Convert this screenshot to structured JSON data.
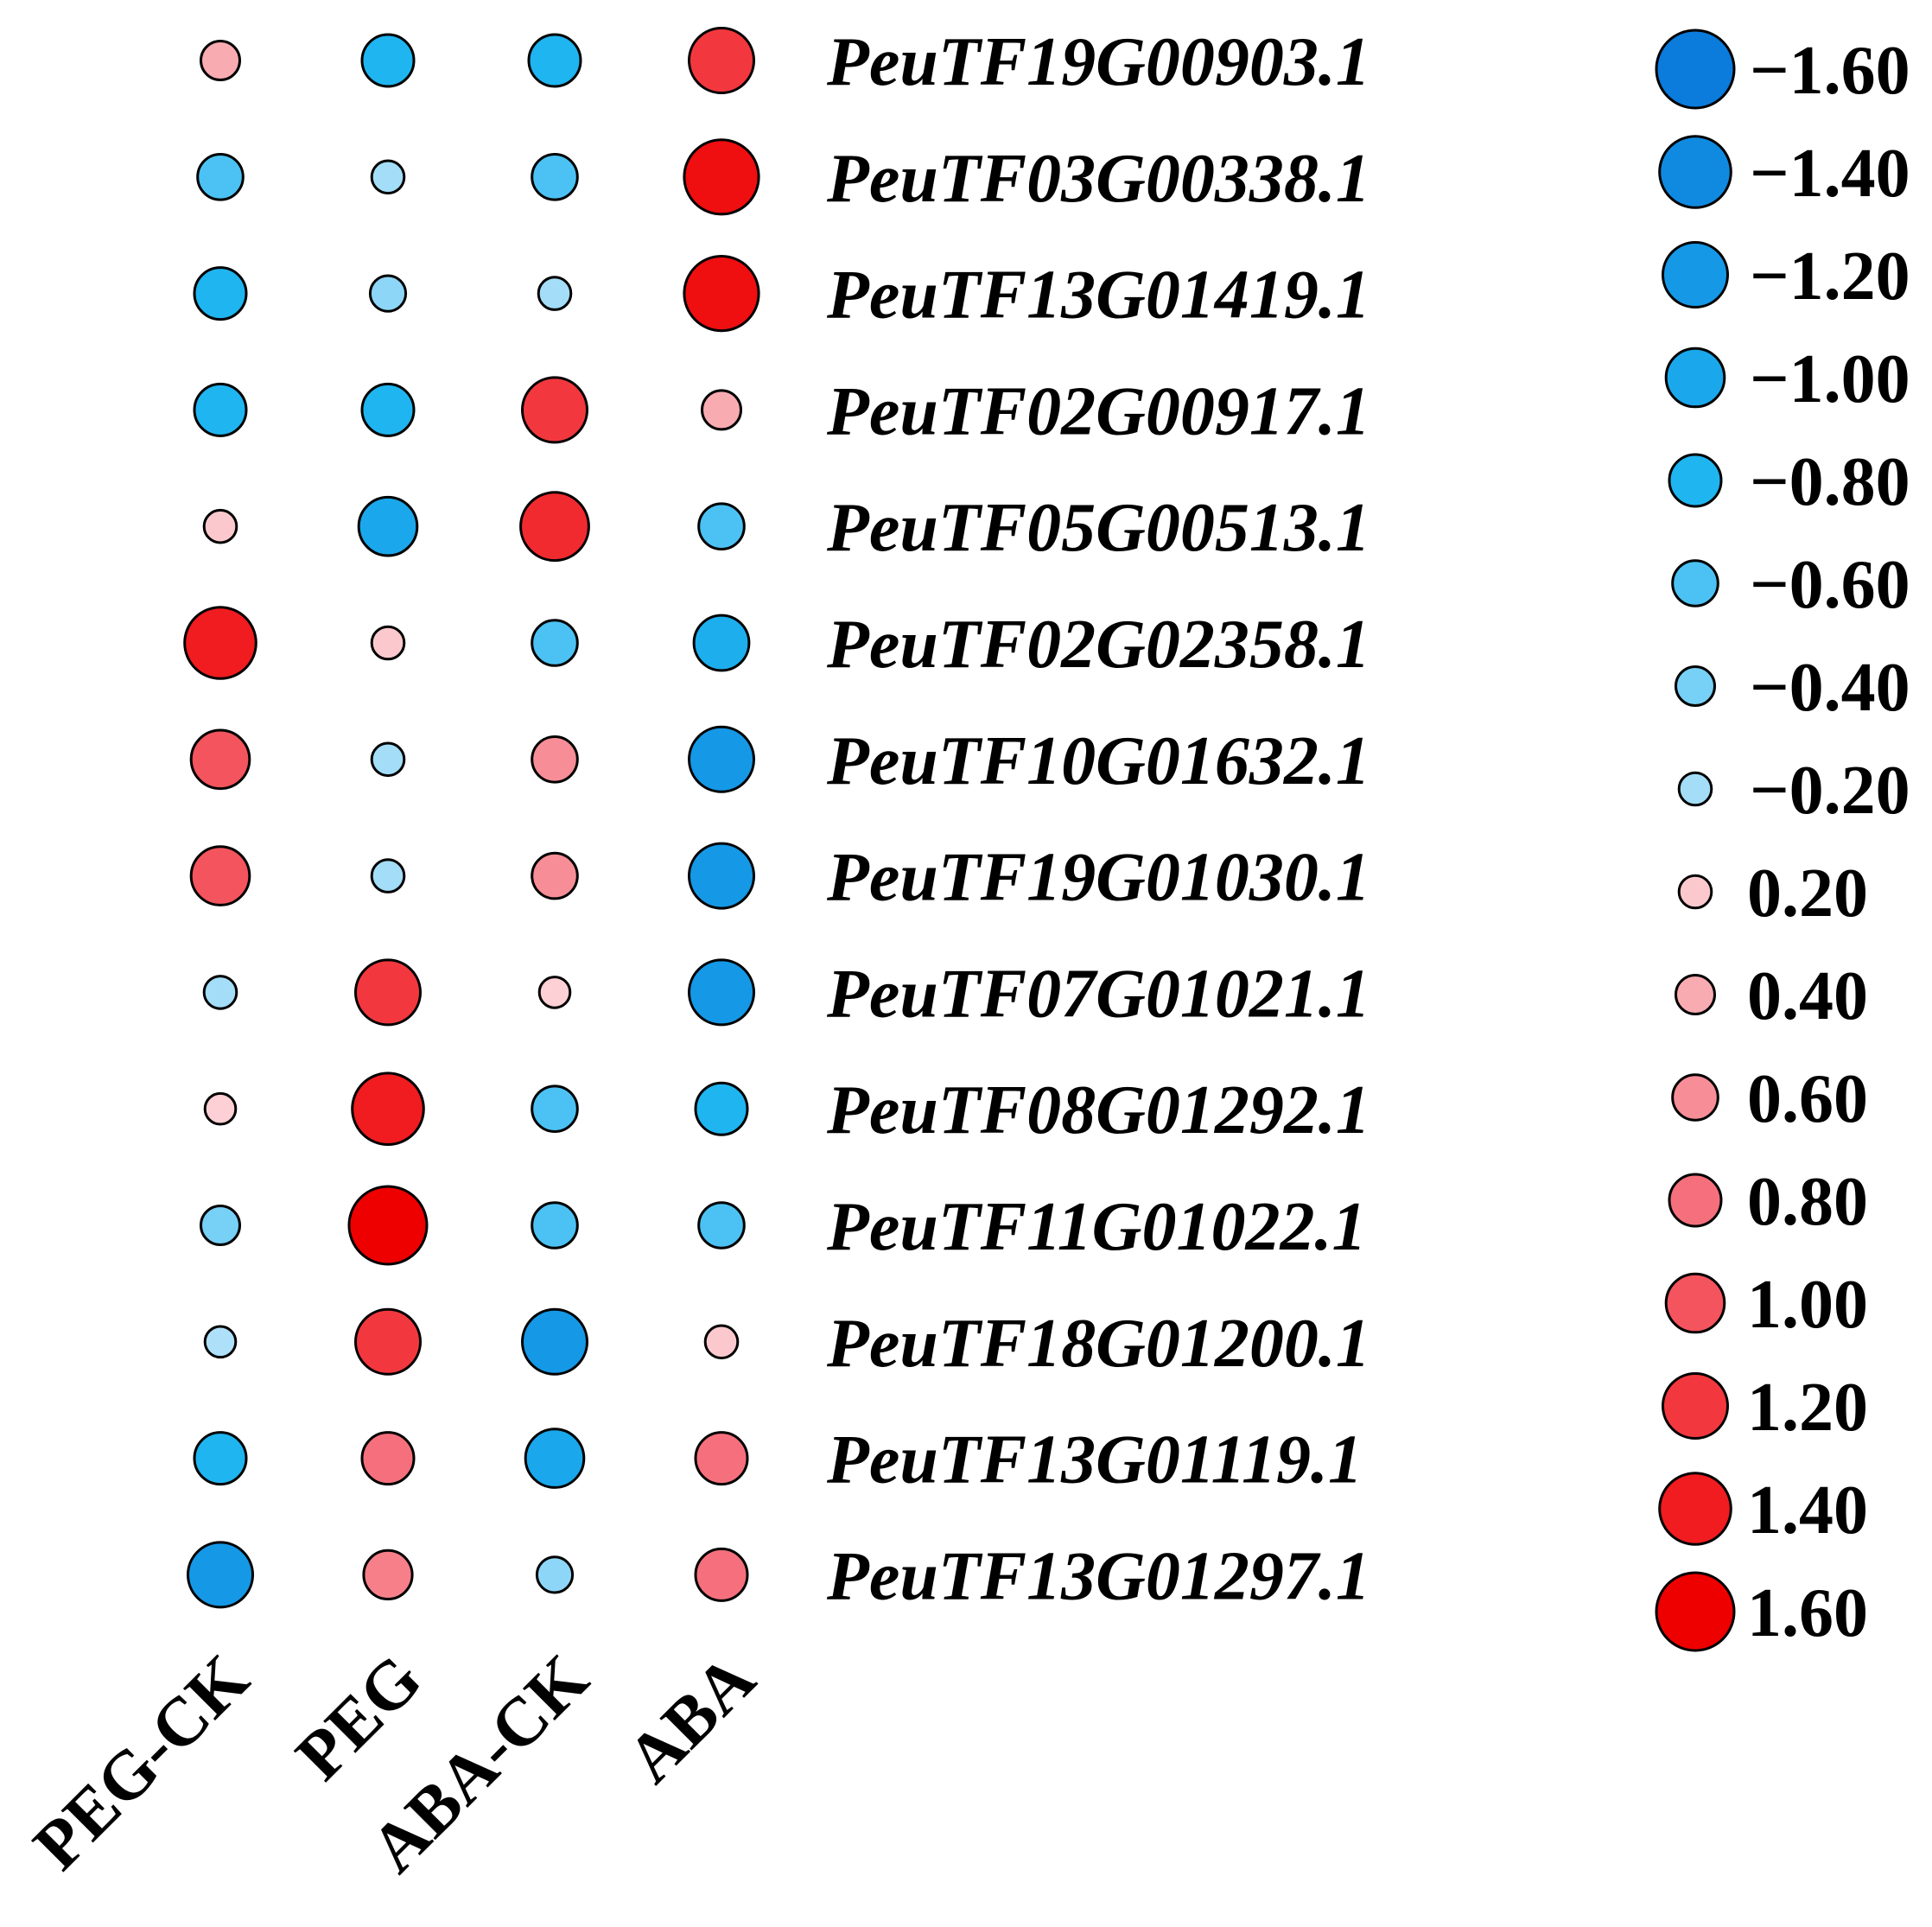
{
  "chart_data": {
    "type": "bubble-heatmap",
    "columns": [
      "PEG-CK",
      "PEG",
      "ABA-CK",
      "ABA"
    ],
    "genes": [
      "PeuTF19G00903.1",
      "PeuTF03G00338.1",
      "PeuTF13G01419.1",
      "PeuTF02G00917.1",
      "PeuTF05G00513.1",
      "PeuTF02G02358.1",
      "PeuTF10G01632.1",
      "PeuTF19G01030.1",
      "PeuTF07G01021.1",
      "PeuTF08G01292.1",
      "PeuTF11G01022.1",
      "PeuTF18G01200.1",
      "PeuTF13G01119.1",
      "PeuTF13G01297.1"
    ],
    "values": [
      [
        0.4,
        -0.8,
        -0.8,
        1.2
      ],
      [
        -0.6,
        -0.2,
        -0.6,
        1.5
      ],
      [
        -0.8,
        -0.3,
        -0.2,
        1.5
      ],
      [
        -0.8,
        -0.8,
        1.2,
        0.4
      ],
      [
        0.2,
        -1.0,
        1.3,
        -0.6
      ],
      [
        1.4,
        0.2,
        -0.6,
        -0.9
      ],
      [
        1.0,
        -0.2,
        0.6,
        -1.2
      ],
      [
        1.0,
        -0.2,
        0.6,
        -1.2
      ],
      [
        -0.2,
        1.2,
        0.15,
        -1.2
      ],
      [
        0.15,
        1.4,
        -0.6,
        -0.8
      ],
      [
        -0.4,
        1.6,
        -0.6,
        -0.6
      ],
      [
        -0.15,
        1.2,
        -1.2,
        0.2
      ],
      [
        -0.8,
        0.8,
        -1.0,
        0.8
      ],
      [
        -1.2,
        0.7,
        -0.3,
        0.8
      ]
    ],
    "legend": {
      "values": [
        -1.6,
        -1.4,
        -1.2,
        -1.0,
        -0.8,
        -0.6,
        -0.4,
        -0.2,
        0.2,
        0.4,
        0.6,
        0.8,
        1.0,
        1.2,
        1.4,
        1.6
      ],
      "labels": [
        "−1.60",
        "−1.40",
        "−1.20",
        "−1.00",
        "−0.80",
        "−0.60",
        "−0.40",
        "−0.20",
        "0.20",
        "0.40",
        "0.60",
        "0.80",
        "1.00",
        "1.20",
        "1.40",
        "1.60"
      ],
      "placement": "right"
    },
    "value_range": [
      -1.6,
      1.6
    ],
    "colors": {
      "negative": [
        "#cfeafb",
        "#1fb5f0",
        "#0b7bdc"
      ],
      "positive": [
        "#fde6e8",
        "#f5707c",
        "#ee0000"
      ],
      "stroke": "#000000"
    }
  }
}
